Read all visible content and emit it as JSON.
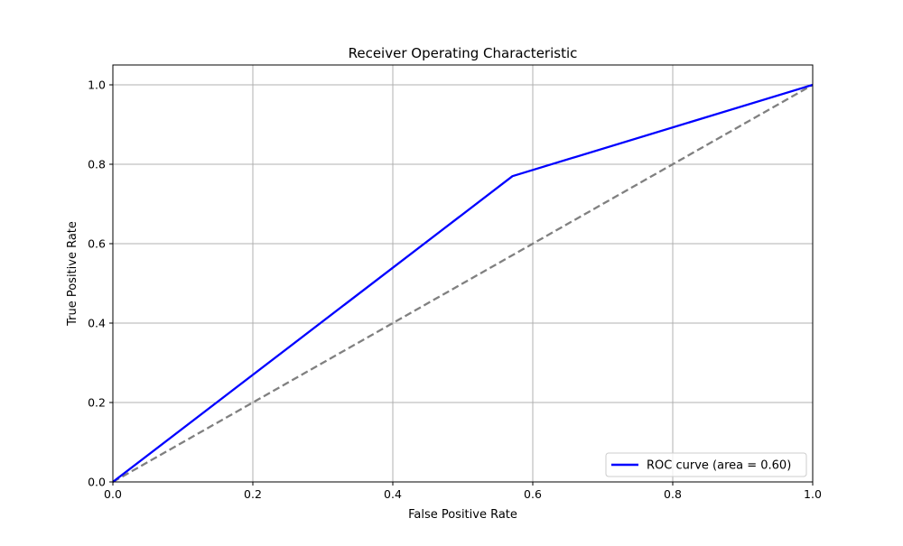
{
  "chart_data": {
    "type": "line",
    "title": "Receiver Operating Characteristic",
    "xlabel": "False Positive Rate",
    "ylabel": "True Positive Rate",
    "xlim": [
      0.0,
      1.05
    ],
    "ylim": [
      0.0,
      1.05
    ],
    "xlim_display": [
      0.0,
      1.0
    ],
    "xticks": [
      "0.0",
      "0.2",
      "0.4",
      "0.6",
      "0.8",
      "1.0"
    ],
    "yticks": [
      "0.0",
      "0.2",
      "0.4",
      "0.6",
      "0.8",
      "1.0"
    ],
    "xtick_values": [
      0.0,
      0.2,
      0.4,
      0.6,
      0.8,
      1.0
    ],
    "ytick_values": [
      0.0,
      0.2,
      0.4,
      0.6,
      0.8,
      1.0
    ],
    "grid": true,
    "legend_position": "lower-right",
    "series": [
      {
        "name": "ROC curve (area = 0.60)",
        "color": "#0000ff",
        "style": "solid",
        "x": [
          0.0,
          0.571,
          1.0
        ],
        "y": [
          0.0,
          0.77,
          1.0
        ]
      },
      {
        "color": "#808080",
        "style": "dashed",
        "x": [
          0.0,
          1.0
        ],
        "y": [
          0.0,
          1.0
        ]
      }
    ]
  }
}
